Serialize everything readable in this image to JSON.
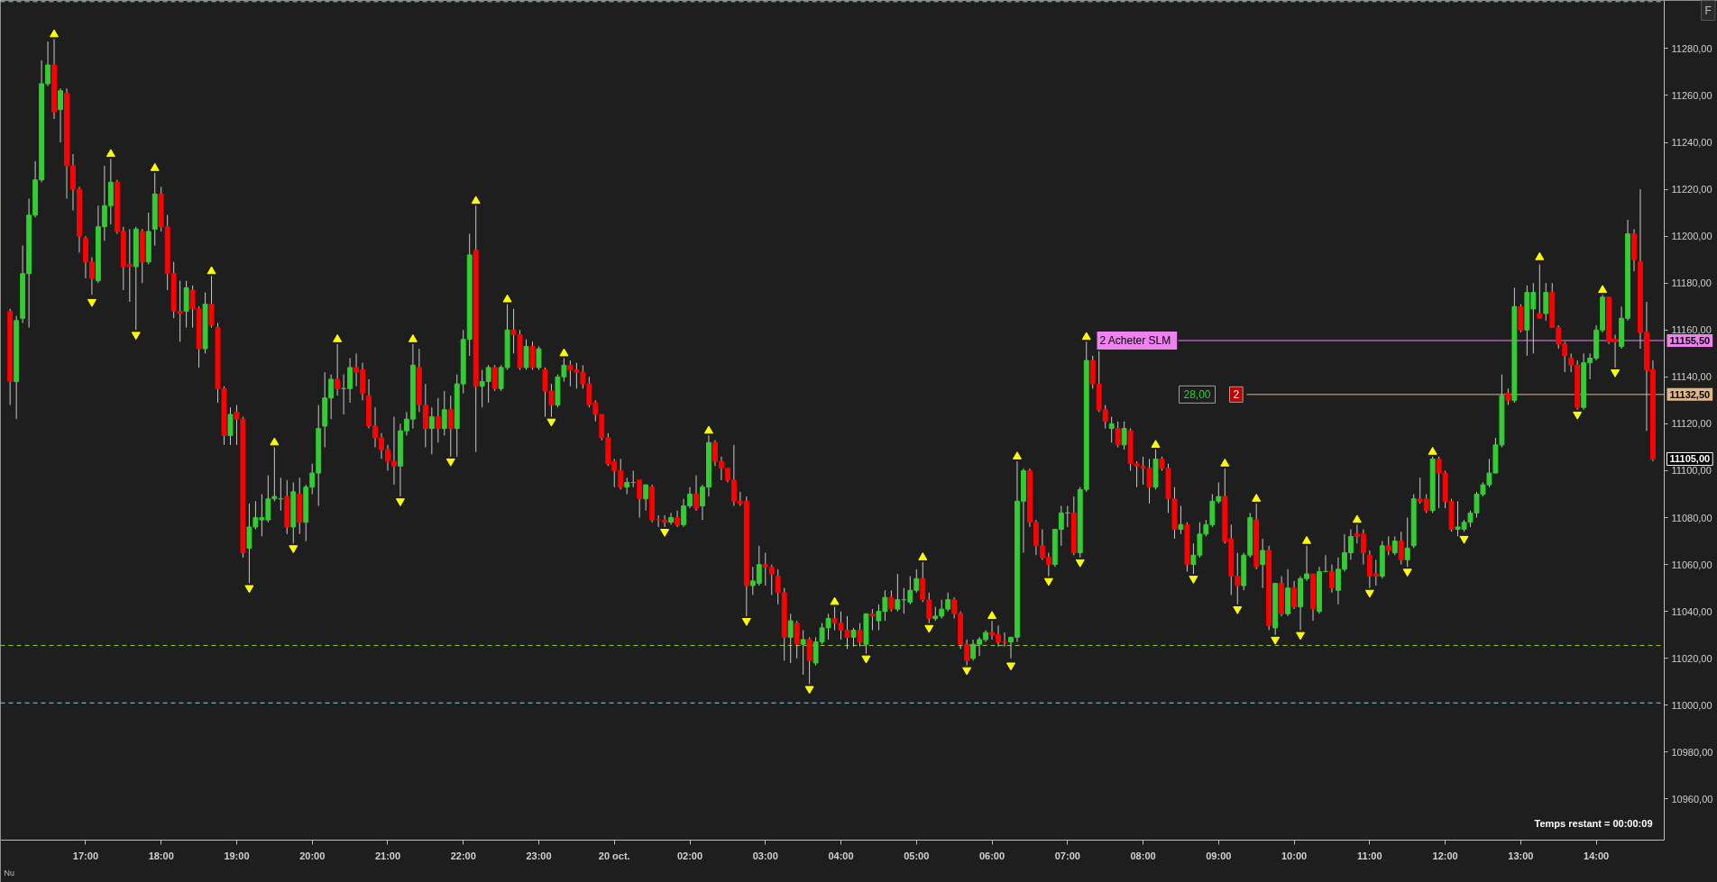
{
  "chart_data": {
    "type": "candlestick",
    "categories": [
      null,
      null,
      null,
      null,
      null,
      null,
      null,
      null,
      null,
      null,
      null,
      null,
      "17:00",
      null,
      null,
      null,
      null,
      null,
      null,
      null,
      null,
      null,
      null,
      null,
      "18:00",
      null,
      null,
      null,
      null,
      null,
      null,
      null,
      null,
      null,
      null,
      null,
      "19:00",
      null,
      null,
      null,
      null,
      null,
      null,
      null,
      null,
      null,
      null,
      null,
      "20:00",
      null,
      null,
      null,
      null,
      null,
      null,
      null,
      null,
      null,
      null,
      null,
      "21:00",
      null,
      null,
      null,
      null,
      null,
      null,
      null,
      null,
      null,
      null,
      null,
      "22:00",
      null,
      null,
      null,
      null,
      null,
      null,
      null,
      null,
      null,
      null,
      null,
      "23:00",
      null,
      null,
      null,
      null,
      null,
      null,
      null,
      null,
      null,
      null,
      null,
      "20 oct.",
      null,
      null,
      null,
      null,
      null,
      null,
      null,
      null,
      null,
      null,
      null,
      "02:00",
      null,
      null,
      null,
      null,
      null,
      null,
      null,
      null,
      null,
      null,
      null,
      "03:00",
      null,
      null,
      null,
      null,
      null,
      null,
      null,
      null,
      null,
      null,
      null,
      "04:00",
      null,
      null,
      null,
      null,
      null,
      null,
      null,
      null,
      null,
      null,
      null,
      "05:00",
      null,
      null,
      null,
      null,
      null,
      null,
      null,
      null,
      null,
      null,
      null,
      "06:00",
      null,
      null,
      null,
      null,
      null,
      null,
      null,
      null,
      null,
      null,
      null,
      "07:00",
      null,
      null,
      null,
      null,
      null,
      null,
      null,
      null,
      null,
      null,
      null,
      "08:00",
      null,
      null,
      null,
      null,
      null,
      null,
      null,
      null,
      null,
      null,
      null,
      "09:00",
      null,
      null,
      null,
      null,
      null,
      null,
      null,
      null,
      null,
      null,
      null,
      "10:00",
      null,
      null,
      null,
      null,
      null,
      null,
      null,
      null,
      null,
      null,
      null,
      "11:00",
      null,
      null,
      null,
      null,
      null,
      null,
      null,
      null,
      null,
      null,
      null,
      "12:00",
      null,
      null,
      null,
      null,
      null,
      null,
      null,
      null,
      null,
      null,
      null,
      "13:00",
      null,
      null,
      null,
      null,
      null,
      null,
      null,
      null,
      null,
      null,
      null,
      "14:00",
      null,
      null,
      null,
      null,
      null,
      null,
      null,
      null,
      null
    ],
    "ohlc": [
      [
        11168,
        11169,
        11128,
        11138
      ],
      [
        11138,
        11166,
        11122,
        11164
      ],
      [
        11165,
        11196,
        11163,
        11184
      ],
      [
        11184,
        11216,
        11161,
        11209
      ],
      [
        11209,
        11232,
        11208,
        11224
      ],
      [
        11224,
        11275,
        11223,
        11265
      ],
      [
        11265,
        11283,
        11264,
        11273
      ],
      [
        11273,
        11284,
        11250,
        11253
      ],
      [
        11254,
        11263,
        11240,
        11262
      ],
      [
        11261,
        11263,
        11216,
        11230
      ],
      [
        11230,
        11235,
        11211,
        11220
      ],
      [
        11220,
        11221,
        11193,
        11200
      ],
      [
        11199,
        11200,
        11182,
        11189
      ],
      [
        11189,
        11191,
        11175,
        11182
      ],
      [
        11181,
        11213,
        11180,
        11204
      ],
      [
        11204,
        11230,
        11198,
        11213
      ],
      [
        11213,
        11233,
        11205,
        11223
      ],
      [
        11223,
        11224,
        11201,
        11202
      ],
      [
        11202,
        11204,
        11177,
        11187
      ],
      [
        11188,
        11203,
        11172,
        11187
      ],
      [
        11187,
        11204,
        11160,
        11203
      ],
      [
        11202,
        11203,
        11180,
        11189
      ],
      [
        11189,
        11210,
        11188,
        11202
      ],
      [
        11203,
        11227,
        11196,
        11218
      ],
      [
        11218,
        11221,
        11202,
        11204
      ],
      [
        11204,
        11209,
        11177,
        11184
      ],
      [
        11184,
        11189,
        11165,
        11168
      ],
      [
        11168,
        11181,
        11155,
        11167
      ],
      [
        11168,
        11181,
        11161,
        11178
      ],
      [
        11177,
        11179,
        11161,
        11169
      ],
      [
        11169,
        11170,
        11144,
        11152
      ],
      [
        11152,
        11176,
        11150,
        11171
      ],
      [
        11171,
        11183,
        11161,
        11162
      ],
      [
        11161,
        11163,
        11129,
        11135
      ],
      [
        11135,
        11136,
        11111,
        11115
      ],
      [
        11115,
        11127,
        11111,
        11124
      ],
      [
        11125,
        11128,
        11111,
        11122
      ],
      [
        11122,
        11123,
        11063,
        11065
      ],
      [
        11067,
        11086,
        11052,
        11076
      ],
      [
        11076,
        11087,
        11075,
        11080
      ],
      [
        11079,
        11090,
        11072,
        11080
      ],
      [
        11079,
        11098,
        11078,
        11088
      ],
      [
        11088,
        11110,
        11087,
        11089
      ],
      [
        11088,
        11097,
        11083,
        11088
      ],
      [
        11089,
        11096,
        11073,
        11076
      ],
      [
        11076,
        11095,
        11069,
        11091
      ],
      [
        11090,
        11097,
        11073,
        11078
      ],
      [
        11078,
        11094,
        11070,
        11093
      ],
      [
        11093,
        11103,
        11090,
        11099
      ],
      [
        11099,
        11128,
        11085,
        11118
      ],
      [
        11119,
        11142,
        11110,
        11131
      ],
      [
        11131,
        11141,
        11122,
        11139
      ],
      [
        11139,
        11154,
        11132,
        11135
      ],
      [
        11135,
        11141,
        11124,
        11135
      ],
      [
        11135,
        11148,
        11129,
        11144
      ],
      [
        11144,
        11150,
        11136,
        11142
      ],
      [
        11143,
        11146,
        11130,
        11133
      ],
      [
        11132,
        11139,
        11118,
        11119
      ],
      [
        11119,
        11127,
        11110,
        11114
      ],
      [
        11114,
        11116,
        11105,
        11109
      ],
      [
        11109,
        11111,
        11100,
        11104
      ],
      [
        11104,
        11123,
        11094,
        11102
      ],
      [
        11102,
        11120,
        11089,
        11117
      ],
      [
        11117,
        11125,
        11115,
        11122
      ],
      [
        11122,
        11154,
        11118,
        11145
      ],
      [
        11144,
        11152,
        11125,
        11128
      ],
      [
        11128,
        11137,
        11110,
        11118
      ],
      [
        11118,
        11127,
        11107,
        11123
      ],
      [
        11123,
        11131,
        11112,
        11118
      ],
      [
        11118,
        11134,
        11115,
        11126
      ],
      [
        11126,
        11132,
        11106,
        11118
      ],
      [
        11118,
        11141,
        11106,
        11137
      ],
      [
        11137,
        11160,
        11133,
        11156
      ],
      [
        11156,
        11201,
        11149,
        11192
      ],
      [
        11194,
        11213,
        11108,
        11136
      ],
      [
        11136,
        11143,
        11127,
        11138
      ],
      [
        11138,
        11145,
        11129,
        11144
      ],
      [
        11144,
        11145,
        11134,
        11135
      ],
      [
        11135,
        11145,
        11134,
        11144
      ],
      [
        11144,
        11171,
        11143,
        11160
      ],
      [
        11160,
        11169,
        11150,
        11158
      ],
      [
        11158,
        11160,
        11143,
        11144
      ],
      [
        11144,
        11156,
        11143,
        11153
      ],
      [
        11153,
        11155,
        11143,
        11144
      ],
      [
        11144,
        11153,
        11143,
        11152
      ],
      [
        11143,
        11144,
        11123,
        11134
      ],
      [
        11134,
        11137,
        11123,
        11128
      ],
      [
        11128,
        11141,
        11127,
        11140
      ],
      [
        11140,
        11148,
        11138,
        11145
      ],
      [
        11145,
        11147,
        11136,
        11143
      ],
      [
        11143,
        11146,
        11135,
        11142
      ],
      [
        11142,
        11145,
        11135,
        11137
      ],
      [
        11137,
        11140,
        11127,
        11128
      ],
      [
        11129,
        11130,
        11121,
        11124
      ],
      [
        11124,
        11124,
        11113,
        11114
      ],
      [
        11114,
        11116,
        11102,
        11103
      ],
      [
        11104,
        11105,
        11093,
        11100
      ],
      [
        11100,
        11105,
        11092,
        11093
      ],
      [
        11093,
        11097,
        11090,
        11095
      ],
      [
        11095,
        11100,
        11093,
        11095
      ],
      [
        11096,
        11096,
        11080,
        11088
      ],
      [
        11088,
        11094,
        11083,
        11094
      ],
      [
        11093,
        11094,
        11078,
        11079
      ],
      [
        11079,
        11081,
        11076,
        11079
      ],
      [
        11079,
        11081,
        11076,
        11078
      ],
      [
        11078,
        11082,
        11077,
        11080
      ],
      [
        11080,
        11083,
        11076,
        11077
      ],
      [
        11077,
        11088,
        11076,
        11085
      ],
      [
        11085,
        11093,
        11084,
        11090
      ],
      [
        11090,
        11098,
        11083,
        11084
      ],
      [
        11085,
        11094,
        11079,
        11093
      ],
      [
        11093,
        11115,
        11089,
        11112
      ],
      [
        11112,
        11113,
        11102,
        11104
      ],
      [
        11104,
        11106,
        11096,
        11101
      ],
      [
        11101,
        11101,
        11095,
        11096
      ],
      [
        11096,
        11111,
        11085,
        11087
      ],
      [
        11087,
        11091,
        11085,
        11086
      ],
      [
        11087,
        11089,
        11038,
        11051
      ],
      [
        11051,
        11059,
        11047,
        11053
      ],
      [
        11052,
        11068,
        11051,
        11060
      ],
      [
        11060,
        11065,
        11051,
        11059
      ],
      [
        11059,
        11060,
        11047,
        11056
      ],
      [
        11055,
        11058,
        11043,
        11048
      ],
      [
        11048,
        11050,
        11019,
        11029
      ],
      [
        11029,
        11039,
        11018,
        11036
      ],
      [
        11035,
        11036,
        11020,
        11026
      ],
      [
        11026,
        11032,
        11013,
        11028
      ],
      [
        11028,
        11029,
        11009,
        11019
      ],
      [
        11018,
        11029,
        11017,
        11027
      ],
      [
        11027,
        11035,
        11026,
        11033
      ],
      [
        11033,
        11039,
        11028,
        11037
      ],
      [
        11037,
        11042,
        11032,
        11035
      ],
      [
        11035,
        11040,
        11028,
        11032
      ],
      [
        11032,
        11038,
        11024,
        11029
      ],
      [
        11029,
        11033,
        11025,
        11032
      ],
      [
        11032,
        11035,
        11025,
        11027
      ],
      [
        11026,
        11039,
        11022,
        11039
      ],
      [
        11039,
        11041,
        11032,
        11038
      ],
      [
        11036,
        11043,
        11032,
        11040
      ],
      [
        11040,
        11049,
        11036,
        11046
      ],
      [
        11046,
        11049,
        11040,
        11041
      ],
      [
        11041,
        11056,
        11040,
        11045
      ],
      [
        11045,
        11050,
        11039,
        11045
      ],
      [
        11044,
        11055,
        11043,
        11049
      ],
      [
        11049,
        11058,
        11048,
        11054
      ],
      [
        11054,
        11061,
        11044,
        11045
      ],
      [
        11045,
        11048,
        11035,
        11037
      ],
      [
        11037,
        11042,
        11036,
        11038
      ],
      [
        11038,
        11045,
        11037,
        11041
      ],
      [
        11041,
        11048,
        11040,
        11045
      ],
      [
        11045,
        11046,
        11037,
        11039
      ],
      [
        11039,
        11040,
        11024,
        11026
      ],
      [
        11026,
        11028,
        11017,
        11019
      ],
      [
        11020,
        11028,
        11019,
        11026
      ],
      [
        11026,
        11029,
        11021,
        11028
      ],
      [
        11028,
        11032,
        11027,
        11031
      ],
      [
        11031,
        11036,
        11028,
        11030
      ],
      [
        11030,
        11034,
        11025,
        11027
      ],
      [
        11027,
        11031,
        11025,
        11027
      ],
      [
        11027,
        11029,
        11020,
        11029
      ],
      [
        11029,
        11104,
        11027,
        11087
      ],
      [
        11087,
        11101,
        11065,
        11100
      ],
      [
        11100,
        11101,
        11076,
        11078
      ],
      [
        11078,
        11079,
        11064,
        11068
      ],
      [
        11068,
        11075,
        11062,
        11063
      ],
      [
        11063,
        11065,
        11055,
        11060
      ],
      [
        11060,
        11075,
        11059,
        11075
      ],
      [
        11075,
        11085,
        11068,
        11082
      ],
      [
        11082,
        11085,
        11076,
        11082
      ],
      [
        11082,
        11089,
        11064,
        11065
      ],
      [
        11065,
        11093,
        11063,
        11092
      ],
      [
        11092,
        11155,
        11091,
        11147
      ],
      [
        11147,
        11149,
        11135,
        11137
      ],
      [
        11137,
        11151,
        11125,
        11126
      ],
      [
        11126,
        11128,
        11118,
        11121
      ],
      [
        11118,
        11123,
        11112,
        11120
      ],
      [
        11118,
        11121,
        11110,
        11111
      ],
      [
        11111,
        11121,
        11109,
        11118
      ],
      [
        11117,
        11118,
        11100,
        11103
      ],
      [
        11103,
        11104,
        11093,
        11102
      ],
      [
        11102,
        11106,
        11094,
        11101
      ],
      [
        11101,
        11105,
        11086,
        11093
      ],
      [
        11093,
        11109,
        11092,
        11105
      ],
      [
        11105,
        11106,
        11100,
        11101
      ],
      [
        11101,
        11103,
        11082,
        11088
      ],
      [
        11088,
        11093,
        11071,
        11075
      ],
      [
        11075,
        11085,
        11073,
        11077
      ],
      [
        11077,
        11078,
        11057,
        11060
      ],
      [
        11060,
        11069,
        11056,
        11064
      ],
      [
        11064,
        11078,
        11063,
        11073
      ],
      [
        11073,
        11079,
        11072,
        11077
      ],
      [
        11077,
        11090,
        11076,
        11087
      ],
      [
        11087,
        11095,
        11086,
        11089
      ],
      [
        11089,
        11101,
        11069,
        11070
      ],
      [
        11071,
        11077,
        11047,
        11055
      ],
      [
        11055,
        11065,
        11043,
        11051
      ],
      [
        11051,
        11065,
        11049,
        11064
      ],
      [
        11064,
        11082,
        11063,
        11080
      ],
      [
        11079,
        11086,
        11058,
        11059
      ],
      [
        11060,
        11071,
        11050,
        11066
      ],
      [
        11066,
        11068,
        11032,
        11034
      ],
      [
        11033,
        11052,
        11030,
        11052
      ],
      [
        11052,
        11055,
        11038,
        11039
      ],
      [
        11039,
        11058,
        11038,
        11050
      ],
      [
        11050,
        11053,
        11041,
        11042
      ],
      [
        11042,
        11055,
        11032,
        11054
      ],
      [
        11054,
        11068,
        11053,
        11056
      ],
      [
        11056,
        11056,
        11036,
        11041
      ],
      [
        11040,
        11059,
        11039,
        11057
      ],
      [
        11057,
        11064,
        11057,
        11057
      ],
      [
        11057,
        11060,
        11048,
        11050
      ],
      [
        11049,
        11063,
        11043,
        11058
      ],
      [
        11058,
        11073,
        11057,
        11065
      ],
      [
        11065,
        11075,
        11062,
        11072
      ],
      [
        11073,
        11077,
        11069,
        11072
      ],
      [
        11073,
        11075,
        11060,
        11065
      ],
      [
        11064,
        11066,
        11050,
        11055
      ],
      [
        11056,
        11062,
        11051,
        11055
      ],
      [
        11055,
        11070,
        11054,
        11068
      ],
      [
        11068,
        11072,
        11064,
        11066
      ],
      [
        11065,
        11072,
        11064,
        11070
      ],
      [
        11070,
        11074,
        11060,
        11062
      ],
      [
        11062,
        11080,
        11059,
        11067
      ],
      [
        11068,
        11090,
        11067,
        11088
      ],
      [
        11088,
        11097,
        11086,
        11087
      ],
      [
        11088,
        11090,
        11082,
        11083
      ],
      [
        11083,
        11106,
        11082,
        11105
      ],
      [
        11105,
        11106,
        11084,
        11099
      ],
      [
        11099,
        11100,
        11084,
        11087
      ],
      [
        11087,
        11088,
        11074,
        11075
      ],
      [
        11075,
        11087,
        11072,
        11076
      ],
      [
        11075,
        11079,
        11074,
        11078
      ],
      [
        11078,
        11083,
        11076,
        11082
      ],
      [
        11082,
        11091,
        11080,
        11090
      ],
      [
        11090,
        11095,
        11089,
        11094
      ],
      [
        11094,
        11105,
        11093,
        11099
      ],
      [
        11099,
        11114,
        11099,
        11111
      ],
      [
        11111,
        11141,
        11110,
        11132
      ],
      [
        11133,
        11135,
        11128,
        11130
      ],
      [
        11130,
        11178,
        11129,
        11170
      ],
      [
        11170,
        11171,
        11159,
        11160
      ],
      [
        11160,
        11179,
        11149,
        11176
      ],
      [
        11169,
        11180,
        11150,
        11176
      ],
      [
        11167,
        11188,
        11165,
        11165
      ],
      [
        11167,
        11180,
        11164,
        11176
      ],
      [
        11176,
        11180,
        11161,
        11161
      ],
      [
        11161,
        11162,
        11152,
        11154
      ],
      [
        11154,
        11155,
        11142,
        11149
      ],
      [
        11148,
        11150,
        11142,
        11145
      ],
      [
        11145,
        11147,
        11126,
        11127
      ],
      [
        11127,
        11150,
        11126,
        11146
      ],
      [
        11146,
        11150,
        11139,
        11148
      ],
      [
        11148,
        11162,
        11147,
        11160
      ],
      [
        11160,
        11175,
        11159,
        11174
      ],
      [
        11174,
        11174,
        11154,
        11155
      ],
      [
        11156,
        11158,
        11144,
        11155
      ],
      [
        11153,
        11170,
        11152,
        11165
      ],
      [
        11165,
        11207,
        11164,
        11201
      ],
      [
        11201,
        11203,
        11185,
        11190
      ],
      [
        11189,
        11220,
        11152,
        11159
      ],
      [
        11159,
        11172,
        11117,
        11143
      ],
      [
        11143,
        11147,
        11104,
        11105
      ]
    ],
    "colors": [
      "#ff0000",
      "#32cd32",
      "#32cd32",
      "#32cd32",
      "#32cd32",
      "#32cd32",
      "#32cd32",
      "#ff0000",
      "#32cd32",
      "#ff0000",
      "#ff0000",
      "#ff0000",
      "#ff0000",
      "#ff0000",
      "#32cd32",
      "#32cd32",
      "#32cd32",
      "#ff0000",
      "#ff0000",
      "#ff0000",
      "#32cd32",
      "#ff0000",
      "#32cd32",
      "#32cd32",
      "#ff0000",
      "#ff0000",
      "#ff0000",
      "#ff0000",
      "#32cd32",
      "#ff0000",
      "#ff0000",
      "#32cd32",
      "#ff0000",
      "#ff0000",
      "#ff0000",
      "#32cd32",
      "#ff0000",
      "#ff0000",
      "#32cd32",
      "#32cd32",
      "#32cd32",
      "#32cd32",
      "#32cd32",
      "#32cd32",
      "#ff0000",
      "#32cd32",
      "#ff0000",
      "#32cd32",
      "#32cd32",
      "#32cd32",
      "#32cd32",
      "#32cd32",
      "#ff0000",
      "#32cd32",
      "#32cd32",
      "#ff0000",
      "#ff0000",
      "#ff0000",
      "#ff0000",
      "#ff0000",
      "#ff0000",
      "#ff0000",
      "#32cd32",
      "#32cd32",
      "#32cd32",
      "#ff0000",
      "#ff0000",
      "#32cd32",
      "#ff0000",
      "#32cd32",
      "#ff0000",
      "#32cd32",
      "#32cd32",
      "#32cd32",
      "#ff0000",
      "#32cd32",
      "#32cd32",
      "#ff0000",
      "#32cd32",
      "#32cd32",
      "#ff0000",
      "#ff0000",
      "#32cd32",
      "#ff0000",
      "#32cd32",
      "#ff0000",
      "#ff0000",
      "#32cd32",
      "#32cd32",
      "#ff0000",
      "#ff0000",
      "#ff0000",
      "#ff0000",
      "#ff0000",
      "#ff0000",
      "#ff0000",
      "#ff0000",
      "#ff0000",
      "#32cd32",
      "#32cd32",
      "#ff0000",
      "#32cd32",
      "#ff0000",
      "#ff0000",
      "#ff0000",
      "#32cd32",
      "#ff0000",
      "#32cd32",
      "#32cd32",
      "#ff0000",
      "#32cd32",
      "#32cd32",
      "#ff0000",
      "#ff0000",
      "#ff0000",
      "#ff0000",
      "#ff0000",
      "#ff0000",
      "#32cd32",
      "#32cd32",
      "#ff0000",
      "#ff0000",
      "#ff0000",
      "#ff0000",
      "#32cd32",
      "#ff0000",
      "#32cd32",
      "#ff0000",
      "#32cd32",
      "#32cd32",
      "#32cd32",
      "#ff0000",
      "#ff0000",
      "#ff0000",
      "#32cd32",
      "#ff0000",
      "#32cd32",
      "#ff0000",
      "#32cd32",
      "#32cd32",
      "#ff0000",
      "#32cd32",
      "#32cd32",
      "#32cd32",
      "#32cd32",
      "#ff0000",
      "#ff0000",
      "#32cd32",
      "#32cd32",
      "#32cd32",
      "#ff0000",
      "#ff0000",
      "#ff0000",
      "#32cd32",
      "#32cd32",
      "#32cd32",
      "#ff0000",
      "#ff0000",
      "#ff0000",
      "#32cd32",
      "#32cd32",
      "#32cd32",
      "#ff0000",
      "#ff0000",
      "#ff0000",
      "#ff0000",
      "#32cd32",
      "#32cd32",
      "#32cd32",
      "#ff0000",
      "#32cd32",
      "#32cd32",
      "#ff0000",
      "#ff0000",
      "#ff0000",
      "#32cd32",
      "#ff0000",
      "#32cd32",
      "#ff0000",
      "#ff0000",
      "#ff0000",
      "#ff0000",
      "#32cd32",
      "#ff0000",
      "#ff0000",
      "#ff0000",
      "#32cd32",
      "#ff0000",
      "#32cd32",
      "#32cd32",
      "#32cd32",
      "#32cd32",
      "#32cd32",
      "#ff0000",
      "#ff0000",
      "#ff0000",
      "#32cd32",
      "#32cd32",
      "#ff0000",
      "#32cd32",
      "#ff0000",
      "#32cd32",
      "#ff0000",
      "#32cd32",
      "#ff0000",
      "#32cd32",
      "#32cd32",
      "#ff0000",
      "#32cd32",
      "#32cd32",
      "#ff0000",
      "#32cd32",
      "#32cd32",
      "#32cd32",
      "#ff0000",
      "#ff0000",
      "#ff0000",
      "#ff0000",
      "#32cd32",
      "#ff0000",
      "#32cd32",
      "#ff0000",
      "#32cd32",
      "#32cd32",
      "#ff0000",
      "#ff0000",
      "#32cd32",
      "#ff0000",
      "#ff0000",
      "#ff0000",
      "#32cd32",
      "#32cd32",
      "#32cd32",
      "#32cd32",
      "#32cd32",
      "#32cd32",
      "#32cd32",
      "#32cd32",
      "#ff0000",
      "#32cd32",
      "#ff0000",
      "#32cd32",
      "#32cd32",
      "#ff0000",
      "#32cd32",
      "#ff0000",
      "#ff0000",
      "#ff0000",
      "#ff0000",
      "#ff0000",
      "#32cd32",
      "#32cd32",
      "#32cd32",
      "#32cd32",
      "#ff0000",
      "#ff0000",
      "#32cd32",
      "#32cd32",
      "#ff0000",
      "#ff0000",
      "#ff0000",
      "#ff0000"
    ],
    "series": [
      {
        "type": "scatter",
        "color": "#ffff00",
        "marker": "triangle",
        "values": [
          null,
          null,
          null,
          null,
          null,
          null,
          null,
          11286,
          null,
          null,
          null,
          null,
          null,
          null,
          null,
          null,
          11235,
          null,
          null,
          null,
          null,
          null,
          null,
          11229,
          null,
          null,
          null,
          null,
          null,
          null,
          null,
          null,
          11185,
          null,
          null,
          null,
          null,
          null,
          null,
          null,
          null,
          null,
          11112,
          null,
          null,
          null,
          null,
          null,
          null,
          null,
          null,
          null,
          11156,
          null,
          null,
          null,
          null,
          null,
          null,
          null,
          null,
          null,
          null,
          null,
          11156,
          null,
          null,
          null,
          null,
          null,
          null,
          null,
          null,
          null,
          11215,
          null,
          null,
          null,
          null,
          11173,
          null,
          null,
          null,
          null,
          null,
          null,
          null,
          null,
          11150,
          null,
          null,
          null,
          null,
          null,
          null,
          null,
          null,
          null,
          null,
          null,
          null,
          null,
          null,
          null,
          null,
          null,
          null,
          null,
          null,
          null,
          null,
          11117,
          null,
          null,
          null,
          null,
          null,
          null,
          null,
          null,
          null,
          null,
          null,
          null,
          null,
          null,
          null,
          null,
          null,
          null,
          null,
          11044,
          null,
          null,
          null,
          null,
          null,
          null,
          null,
          null,
          null,
          null,
          null,
          null,
          null,
          11063,
          null,
          null,
          null,
          null,
          null,
          null,
          null,
          null,
          null,
          null,
          11038,
          null,
          null,
          null,
          11106,
          null,
          null,
          null,
          null,
          null,
          null,
          null,
          null,
          null,
          null,
          11157,
          null,
          null,
          null,
          null,
          null,
          null,
          null,
          null,
          null,
          null,
          11111,
          null,
          null,
          null,
          null,
          null,
          null,
          null,
          null,
          null,
          null,
          11103,
          null,
          null,
          null,
          null,
          11088,
          null,
          null,
          null,
          null,
          null,
          null,
          null,
          11070,
          null,
          null,
          null,
          null,
          null,
          null,
          null,
          11079,
          null,
          null,
          null,
          null,
          null,
          null,
          null,
          null,
          null,
          null,
          null,
          11108,
          null,
          null,
          null,
          null,
          null,
          null,
          null,
          null,
          null,
          null,
          null,
          null,
          null,
          null,
          null,
          null,
          11191,
          null,
          null,
          null,
          null,
          null,
          null,
          null,
          null,
          null,
          11177,
          null,
          null,
          null,
          null,
          null,
          null,
          null,
          null
        ]
      },
      {
        "type": "scatter",
        "color": "#ffff00",
        "marker": "triangle",
        "values": [
          null,
          null,
          null,
          null,
          null,
          null,
          null,
          null,
          null,
          null,
          null,
          null,
          null,
          11172,
          null,
          null,
          null,
          null,
          null,
          null,
          11158,
          null,
          null,
          null,
          null,
          null,
          null,
          null,
          null,
          null,
          null,
          null,
          null,
          null,
          null,
          null,
          null,
          null,
          11050,
          null,
          null,
          null,
          null,
          null,
          null,
          11067,
          null,
          null,
          null,
          null,
          null,
          null,
          null,
          null,
          null,
          null,
          null,
          null,
          null,
          null,
          null,
          null,
          11087,
          null,
          null,
          null,
          null,
          null,
          null,
          null,
          11104,
          null,
          null,
          null,
          null,
          null,
          null,
          null,
          null,
          null,
          null,
          null,
          null,
          null,
          null,
          null,
          11121,
          null,
          null,
          null,
          null,
          null,
          null,
          null,
          null,
          null,
          null,
          null,
          null,
          null,
          null,
          null,
          null,
          null,
          11074,
          null,
          null,
          null,
          null,
          null,
          null,
          null,
          null,
          null,
          null,
          null,
          null,
          11036,
          null,
          null,
          null,
          null,
          null,
          null,
          null,
          null,
          null,
          11007,
          null,
          null,
          null,
          null,
          null,
          null,
          null,
          null,
          11020,
          null,
          null,
          null,
          null,
          null,
          null,
          null,
          null,
          null,
          11033,
          null,
          null,
          null,
          null,
          null,
          11015,
          null,
          null,
          null,
          null,
          null,
          null,
          11017,
          null,
          null,
          null,
          null,
          null,
          11053,
          null,
          null,
          null,
          null,
          11061,
          null,
          null,
          null,
          null,
          null,
          null,
          null,
          null,
          null,
          null,
          null,
          null,
          null,
          null,
          null,
          null,
          null,
          11054,
          null,
          null,
          null,
          null,
          null,
          null,
          11041,
          null,
          null,
          null,
          null,
          null,
          11028,
          null,
          null,
          null,
          11030,
          null,
          null,
          null,
          null,
          null,
          null,
          null,
          null,
          null,
          null,
          11048,
          null,
          null,
          null,
          null,
          null,
          11057,
          null,
          null,
          null,
          null,
          null,
          null,
          null,
          null,
          11071,
          null,
          null,
          null,
          null,
          null,
          null,
          null,
          null,
          null,
          null,
          null,
          null,
          null,
          null,
          null,
          null,
          null,
          11124,
          null,
          null,
          null,
          null,
          null,
          11142,
          null,
          null,
          null,
          null,
          null,
          null
        ]
      }
    ],
    "ylim": [
      10942.5,
      11300.5
    ],
    "yticks": [
      {
        "value": 10960,
        "label": "10960,00"
      },
      {
        "value": 10980,
        "label": "10980,00"
      },
      {
        "value": 11000,
        "label": "11000,00"
      },
      {
        "value": 11020,
        "label": "11020,00"
      },
      {
        "value": 11040,
        "label": "11040,00"
      },
      {
        "value": 11060,
        "label": "11060,00"
      },
      {
        "value": 11080,
        "label": "11080,00"
      },
      {
        "value": 11100,
        "label": "11100,00"
      },
      {
        "value": 11120,
        "label": "11120,00"
      },
      {
        "value": 11140,
        "label": "11140,00"
      },
      {
        "value": 11160,
        "label": "11160,00"
      },
      {
        "value": 11180,
        "label": "11180,00"
      },
      {
        "value": 11200,
        "label": "11200,00"
      },
      {
        "value": 11220,
        "label": "11220,00"
      },
      {
        "value": 11240,
        "label": "11240,00"
      },
      {
        "value": 11260,
        "label": "11260,00"
      },
      {
        "value": 11280,
        "label": "11280,00"
      }
    ],
    "ref_lines": [
      {
        "axis": "y",
        "value": 11300,
        "color": "#87ceeb",
        "line_style": "dashed"
      },
      {
        "axis": "y",
        "value": 11001,
        "color": "#87ceeb",
        "line_style": "dashed"
      },
      {
        "axis": "y",
        "value": 11025.5,
        "color": "#9acd32",
        "line_style": "dashed"
      },
      {
        "axis": "y",
        "value": 11155.5,
        "label": "11155,50",
        "color": "#ee82ee",
        "line_style": "solid"
      },
      {
        "axis": "y",
        "value": 11132.5,
        "label": "11132,50",
        "color": "#deb887",
        "line_style": "solid"
      }
    ],
    "annotations": [
      "2  Acheter SLM",
      {
        "text": "28,00",
        "y": 11132.5
      },
      {
        "text": "2",
        "y": 11132.5
      },
      "11105,00",
      "Temps restant = 00:00:09",
      "Nu",
      "F"
    ]
  }
}
